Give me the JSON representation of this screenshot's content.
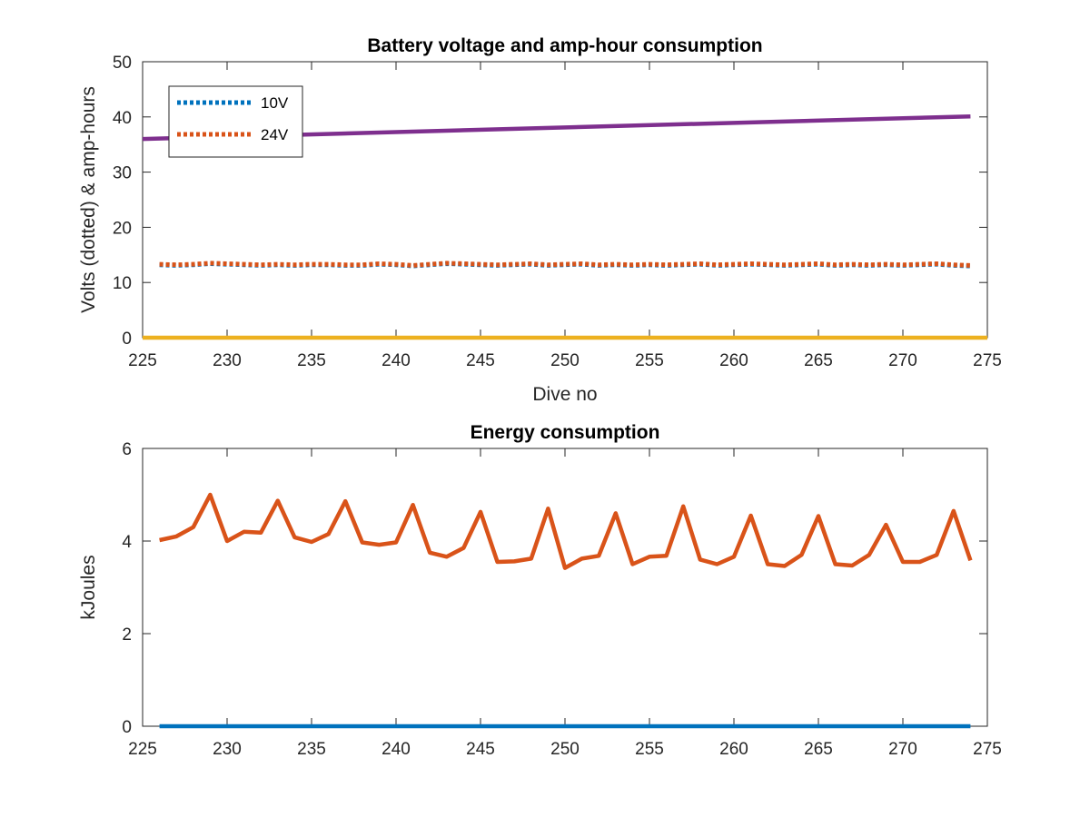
{
  "chart_data": [
    {
      "type": "line",
      "title": "Battery voltage and amp-hour consumption",
      "xlabel": "Dive no",
      "ylabel": "Volts (dotted) & amp-hours",
      "xlim": [
        225,
        275
      ],
      "ylim": [
        0,
        50
      ],
      "xticks": [
        "225",
        "230",
        "235",
        "240",
        "245",
        "250",
        "255",
        "260",
        "265",
        "270",
        "275"
      ],
      "yticks": [
        "0",
        "10",
        "20",
        "30",
        "40",
        "50"
      ],
      "grid": false,
      "legend": {
        "placement": "top-left"
      },
      "series": [
        {
          "name": "10V",
          "style": "dotted",
          "color": "#0072BD",
          "x": [
            226,
            227,
            228,
            229,
            230,
            231,
            232,
            233,
            234,
            235,
            236,
            237,
            238,
            239,
            240,
            241,
            242,
            243,
            244,
            245,
            246,
            247,
            248,
            249,
            250,
            251,
            252,
            253,
            254,
            255,
            256,
            257,
            258,
            259,
            260,
            261,
            262,
            263,
            264,
            265,
            266,
            267,
            268,
            269,
            270,
            271,
            272,
            273,
            274
          ],
          "y": [
            13.2,
            13.1,
            13.2,
            13.4,
            13.3,
            13.2,
            13.1,
            13.2,
            13.1,
            13.2,
            13.2,
            13.1,
            13.1,
            13.3,
            13.2,
            13.0,
            13.2,
            13.4,
            13.3,
            13.2,
            13.1,
            13.2,
            13.3,
            13.1,
            13.2,
            13.3,
            13.1,
            13.2,
            13.1,
            13.2,
            13.1,
            13.2,
            13.3,
            13.1,
            13.2,
            13.3,
            13.2,
            13.1,
            13.2,
            13.3,
            13.1,
            13.2,
            13.1,
            13.2,
            13.1,
            13.2,
            13.3,
            13.1,
            13.0
          ]
        },
        {
          "name": "24V",
          "style": "dotted",
          "color": "#D95319",
          "x": [
            226,
            227,
            228,
            229,
            230,
            231,
            232,
            233,
            234,
            235,
            236,
            237,
            238,
            239,
            240,
            241,
            242,
            243,
            244,
            245,
            246,
            247,
            248,
            249,
            250,
            251,
            252,
            253,
            254,
            255,
            256,
            257,
            258,
            259,
            260,
            261,
            262,
            263,
            264,
            265,
            266,
            267,
            268,
            269,
            270,
            271,
            272,
            273,
            274
          ],
          "y": [
            13.3,
            13.2,
            13.3,
            13.5,
            13.4,
            13.3,
            13.2,
            13.3,
            13.2,
            13.3,
            13.3,
            13.2,
            13.2,
            13.4,
            13.3,
            13.1,
            13.3,
            13.5,
            13.4,
            13.3,
            13.2,
            13.3,
            13.4,
            13.2,
            13.3,
            13.4,
            13.2,
            13.3,
            13.2,
            13.3,
            13.2,
            13.3,
            13.4,
            13.2,
            13.3,
            13.4,
            13.3,
            13.2,
            13.3,
            13.4,
            13.2,
            13.3,
            13.2,
            13.3,
            13.2,
            13.3,
            13.4,
            13.2,
            13.1
          ]
        },
        {
          "style": "solid",
          "color": "#7E2F8E",
          "x": [
            225,
            274
          ],
          "y": [
            36.0,
            40.1
          ]
        },
        {
          "style": "solid",
          "color": "#EDB120",
          "x": [
            225,
            275
          ],
          "y": [
            0,
            0
          ]
        }
      ]
    },
    {
      "type": "line",
      "title": "Energy consumption",
      "xlabel": "",
      "ylabel": "kJoules",
      "xlim": [
        225,
        275
      ],
      "ylim": [
        0,
        6
      ],
      "xticks": [
        "225",
        "230",
        "235",
        "240",
        "245",
        "250",
        "255",
        "260",
        "265",
        "270",
        "275"
      ],
      "yticks": [
        "0",
        "2",
        "4",
        "6"
      ],
      "grid": false,
      "series": [
        {
          "style": "solid",
          "color": "#D95319",
          "x": [
            226,
            227,
            228,
            229,
            230,
            231,
            232,
            233,
            234,
            235,
            236,
            237,
            238,
            239,
            240,
            241,
            242,
            243,
            244,
            245,
            246,
            247,
            248,
            249,
            250,
            251,
            252,
            253,
            254,
            255,
            256,
            257,
            258,
            259,
            260,
            261,
            262,
            263,
            264,
            265,
            266,
            267,
            268,
            269,
            270,
            271,
            272,
            273,
            274
          ],
          "y": [
            4.02,
            4.1,
            4.3,
            5.0,
            4.0,
            4.2,
            4.18,
            4.87,
            4.08,
            3.98,
            4.15,
            4.86,
            3.97,
            3.92,
            3.97,
            4.78,
            3.75,
            3.66,
            3.85,
            4.63,
            3.55,
            3.56,
            3.62,
            4.7,
            3.42,
            3.62,
            3.68,
            4.6,
            3.5,
            3.66,
            3.68,
            4.75,
            3.6,
            3.5,
            3.66,
            4.55,
            3.5,
            3.46,
            3.7,
            4.54,
            3.5,
            3.47,
            3.7,
            4.35,
            3.55,
            3.55,
            3.7,
            4.65,
            3.58
          ]
        },
        {
          "style": "solid",
          "color": "#0072BD",
          "x": [
            226,
            274
          ],
          "y": [
            0,
            0
          ]
        }
      ]
    }
  ]
}
